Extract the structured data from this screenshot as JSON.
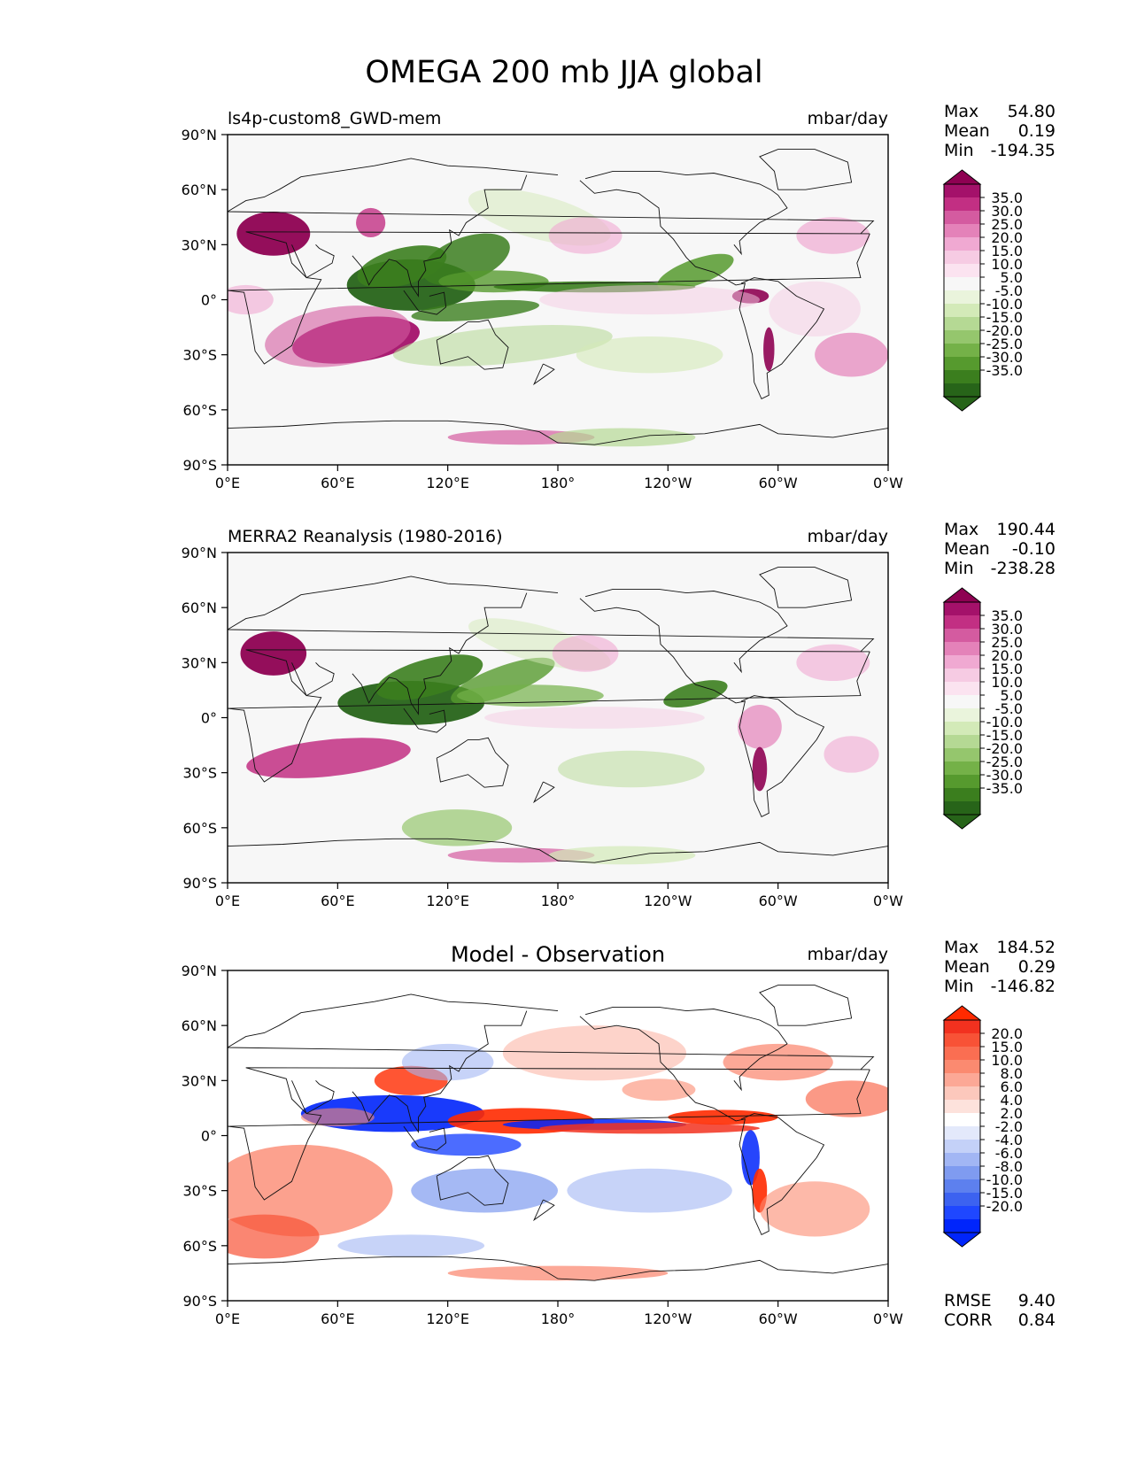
{
  "figure": {
    "title": "OMEGA 200 mb JJA global",
    "lat_ticks": [
      "90°N",
      "60°N",
      "30°N",
      "0°",
      "30°S",
      "60°S",
      "90°S"
    ],
    "lon_ticks": [
      "0°E",
      "60°E",
      "120°E",
      "180°",
      "120°W",
      "60°W",
      "0°W"
    ]
  },
  "colors": {
    "diverging_pg": [
      "#276419",
      "#3b7e1e",
      "#569a2e",
      "#74b148",
      "#95c66d",
      "#b5d994",
      "#d3eab8",
      "#eaf4dc",
      "#f7f7f7",
      "#fbe3f0",
      "#f6cbe3",
      "#f0a9d2",
      "#e482b9",
      "#d45ba0",
      "#c22f83",
      "#a4116a",
      "#8e0152"
    ],
    "diverging_br": [
      "#0025fb",
      "#1f47ff",
      "#3c62f0",
      "#5d80ee",
      "#7f9bf0",
      "#a2b6f4",
      "#c4d1f8",
      "#e3e9fb",
      "#ffffff",
      "#fde2dc",
      "#fcc8bc",
      "#fca896",
      "#fb8a70",
      "#fa6e52",
      "#f85236",
      "#f2311f",
      "#ff2a00"
    ]
  },
  "chart_data": [
    {
      "type": "heatmap",
      "panel": "test",
      "title": "ls4p-custom8_GWD-mem",
      "units": "mbar/day",
      "stats": [
        {
          "label": "Max",
          "value": "54.80"
        },
        {
          "label": "Mean",
          "value": "0.19"
        },
        {
          "label": "Min",
          "value": "-194.35"
        }
      ],
      "colorbar_levels": [
        "35.0",
        "30.0",
        "25.0",
        "20.0",
        "15.0",
        "10.0",
        "5.0",
        "-5.0",
        "-10.0",
        "-15.0",
        "-20.0",
        "-25.0",
        "-30.0",
        "-35.0"
      ],
      "colormap": "PiYG_r",
      "x_range": [
        0,
        360
      ],
      "y_range": [
        -90,
        90
      ]
    },
    {
      "type": "heatmap",
      "panel": "reference",
      "title": "MERRA2 Reanalysis (1980-2016)",
      "units": "mbar/day",
      "stats": [
        {
          "label": "Max",
          "value": "190.44"
        },
        {
          "label": "Mean",
          "value": "-0.10"
        },
        {
          "label": "Min",
          "value": "-238.28"
        }
      ],
      "colorbar_levels": [
        "35.0",
        "30.0",
        "25.0",
        "20.0",
        "15.0",
        "10.0",
        "5.0",
        "-5.0",
        "-10.0",
        "-15.0",
        "-20.0",
        "-25.0",
        "-30.0",
        "-35.0"
      ],
      "colormap": "PiYG_r",
      "x_range": [
        0,
        360
      ],
      "y_range": [
        -90,
        90
      ]
    },
    {
      "type": "heatmap",
      "panel": "diff",
      "title": "Model - Observation",
      "units": "mbar/day",
      "stats": [
        {
          "label": "Max",
          "value": "184.52"
        },
        {
          "label": "Mean",
          "value": "0.29"
        },
        {
          "label": "Min",
          "value": "-146.82"
        }
      ],
      "extra_stats": [
        {
          "label": "RMSE",
          "value": "9.40"
        },
        {
          "label": "CORR",
          "value": "0.84"
        }
      ],
      "colorbar_levels": [
        "20.0",
        "15.0",
        "10.0",
        "8.0",
        "6.0",
        "4.0",
        "2.0",
        "-2.0",
        "-4.0",
        "-6.0",
        "-8.0",
        "-10.0",
        "-15.0",
        "-20.0"
      ],
      "colormap": "bwr",
      "x_range": [
        0,
        360
      ],
      "y_range": [
        -90,
        90
      ]
    }
  ]
}
